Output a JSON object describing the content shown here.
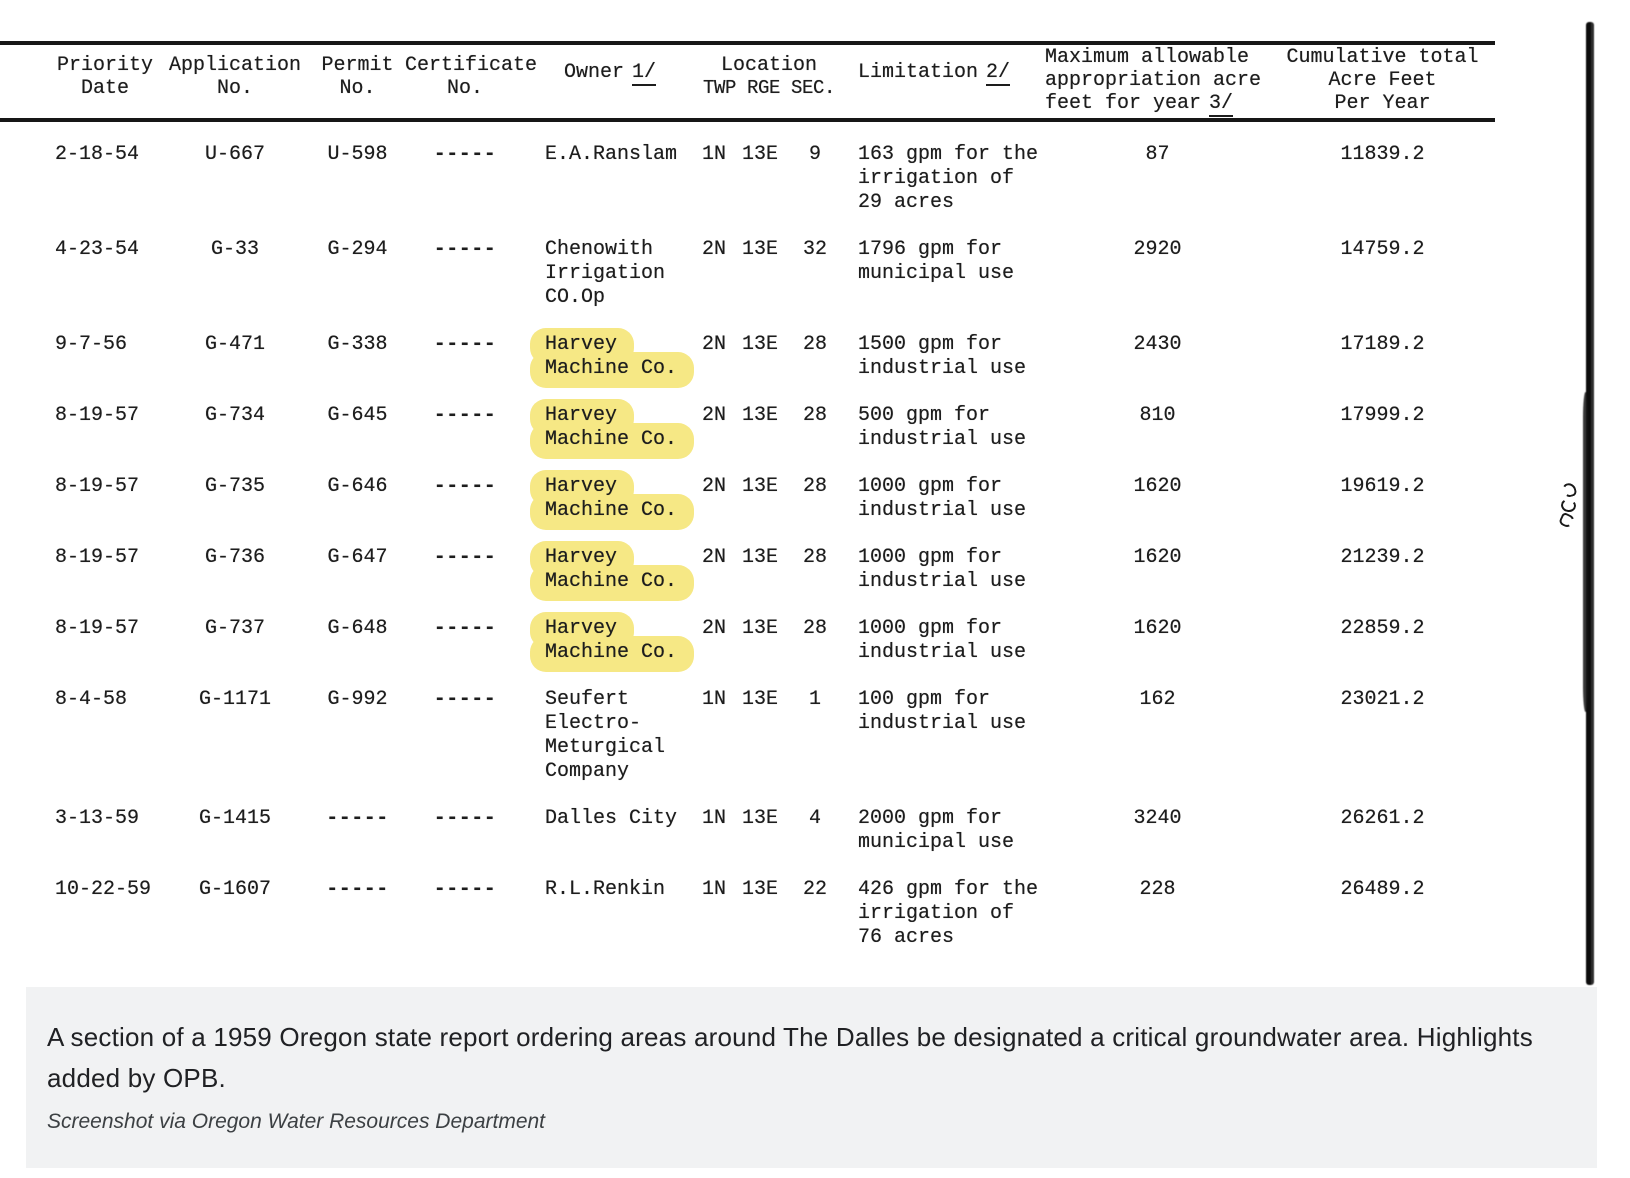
{
  "colors": {
    "highlight": "#f6e885",
    "caption_bg": "#f1f2f3",
    "ink": "#1d1d1d"
  },
  "table": {
    "columns": [
      {
        "id": "priority",
        "lines": [
          "Priority",
          "Date"
        ]
      },
      {
        "id": "application",
        "lines": [
          "Application",
          "No."
        ]
      },
      {
        "id": "permit",
        "lines": [
          "Permit",
          "No."
        ]
      },
      {
        "id": "certificate",
        "lines": [
          "Certificate",
          "No."
        ]
      },
      {
        "id": "owner",
        "lines": [
          "Owner"
        ],
        "ref": "1/"
      },
      {
        "id": "location",
        "lines": [
          "Location",
          "TWP RGE SEC."
        ]
      },
      {
        "id": "limitation",
        "lines": [
          "Limitation"
        ],
        "ref": "2/"
      },
      {
        "id": "max-appropriation",
        "lines": [
          "Maximum allowable",
          "appropriation acre",
          "feet for year"
        ],
        "ref": "3/"
      },
      {
        "id": "cumulative",
        "lines": [
          "Cumulative total",
          "Acre Feet",
          "Per Year"
        ]
      }
    ],
    "rows": [
      {
        "date": "2-18-54",
        "app": "U-667",
        "permit": "U-598",
        "cert": "-----",
        "owner": [
          "E.A.Ranslam"
        ],
        "highlight": false,
        "twp": "1N",
        "rge": "13E",
        "sec": "9",
        "limitation": [
          "163 gpm for the",
          "irrigation of",
          "29 acres"
        ],
        "max": "87",
        "cum": "11839.2"
      },
      {
        "date": "4-23-54",
        "app": "G-33",
        "permit": "G-294",
        "cert": "-----",
        "owner": [
          "Chenowith",
          "Irrigation",
          "CO.Op"
        ],
        "highlight": false,
        "twp": "2N",
        "rge": "13E",
        "sec": "32",
        "limitation": [
          "1796 gpm for",
          "municipal use"
        ],
        "max": "2920",
        "cum": "14759.2"
      },
      {
        "date": "9-7-56",
        "app": "G-471",
        "permit": "G-338",
        "cert": "-----",
        "owner": [
          "Harvey",
          "Machine Co."
        ],
        "highlight": true,
        "twp": "2N",
        "rge": "13E",
        "sec": "28",
        "limitation": [
          "1500 gpm for",
          "industrial use"
        ],
        "max": "2430",
        "cum": "17189.2"
      },
      {
        "date": "8-19-57",
        "app": "G-734",
        "permit": "G-645",
        "cert": "-----",
        "owner": [
          "Harvey",
          "Machine Co."
        ],
        "highlight": true,
        "twp": "2N",
        "rge": "13E",
        "sec": "28",
        "limitation": [
          "500 gpm for",
          "industrial use"
        ],
        "max": "810",
        "cum": "17999.2"
      },
      {
        "date": "8-19-57",
        "app": "G-735",
        "permit": "G-646",
        "cert": "-----",
        "owner": [
          "Harvey",
          "Machine Co."
        ],
        "highlight": true,
        "twp": "2N",
        "rge": "13E",
        "sec": "28",
        "limitation": [
          "1000 gpm for",
          "industrial use"
        ],
        "max": "1620",
        "cum": "19619.2"
      },
      {
        "date": "8-19-57",
        "app": "G-736",
        "permit": "G-647",
        "cert": "-----",
        "owner": [
          "Harvey",
          "Machine Co."
        ],
        "highlight": true,
        "twp": "2N",
        "rge": "13E",
        "sec": "28",
        "limitation": [
          "1000 gpm for",
          "industrial use"
        ],
        "max": "1620",
        "cum": "21239.2"
      },
      {
        "date": "8-19-57",
        "app": "G-737",
        "permit": "G-648",
        "cert": "-----",
        "owner": [
          "Harvey",
          "Machine Co."
        ],
        "highlight": true,
        "twp": "2N",
        "rge": "13E",
        "sec": "28",
        "limitation": [
          "1000 gpm for",
          "industrial use"
        ],
        "max": "1620",
        "cum": "22859.2"
      },
      {
        "date": "8-4-58",
        "app": "G-1171",
        "permit": "G-992",
        "cert": "-----",
        "owner": [
          "Seufert",
          "Electro-",
          "Meturgical",
          "Company"
        ],
        "highlight": false,
        "twp": "1N",
        "rge": "13E",
        "sec": "1",
        "limitation": [
          "100 gpm for",
          "industrial use"
        ],
        "max": "162",
        "cum": "23021.2"
      },
      {
        "date": "3-13-59",
        "app": "G-1415",
        "permit": "-----",
        "cert": "-----",
        "owner": [
          "Dalles City"
        ],
        "highlight": false,
        "twp": "1N",
        "rge": "13E",
        "sec": "4",
        "limitation": [
          "2000 gpm for",
          "municipal use"
        ],
        "max": "3240",
        "cum": "26261.2"
      },
      {
        "date": "10-22-59",
        "app": "G-1607",
        "permit": "-----",
        "cert": "-----",
        "owner": [
          "R.L.Renkin"
        ],
        "highlight": false,
        "twp": "1N",
        "rge": "13E",
        "sec": "22",
        "limitation": [
          "426 gpm for the",
          "irrigation of",
          "76 acres"
        ],
        "max": "228",
        "cum": "26489.2"
      }
    ]
  },
  "caption": {
    "line1": "A section of a 1959 Oregon state report ordering areas around The Dalles be designated a critical groundwater area. Highlights",
    "line2": "added by OPB.",
    "credit": "Screenshot via Oregon Water Resources Department"
  }
}
